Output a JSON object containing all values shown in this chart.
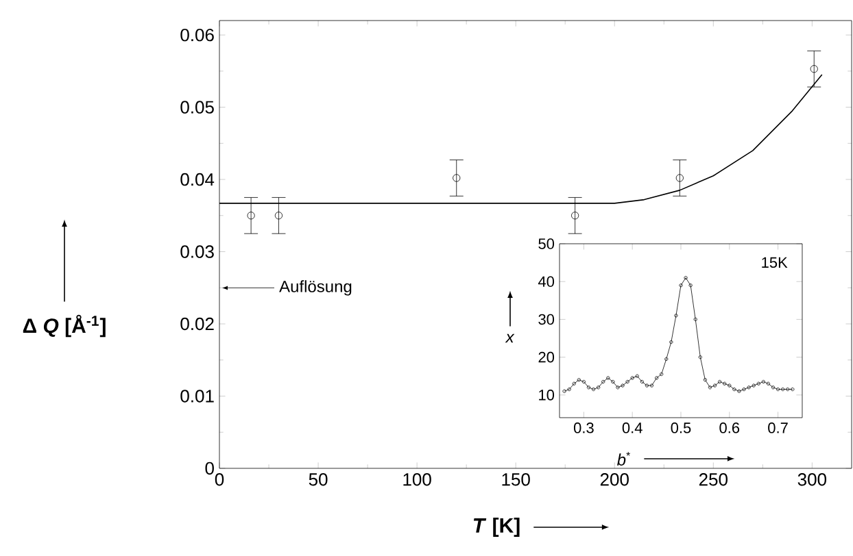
{
  "chart_data": [
    {
      "type": "scatter",
      "xlabel": "*T* [K]",
      "ylabel": "Δ *Q* [Å$^{-1}$]",
      "xlim": [
        0,
        320
      ],
      "ylim": [
        0,
        0.062
      ],
      "xticks": [
        0,
        50,
        100,
        150,
        200,
        250,
        300
      ],
      "yticks": [
        0,
        0.01,
        0.02,
        0.03,
        0.04,
        0.05,
        0.06
      ],
      "marker": "circle",
      "annotations": [
        "Auflösung"
      ],
      "series": [
        {
          "type": "scatter",
          "color": "#000000",
          "x": [
            16,
            30,
            120,
            180,
            233,
            301
          ],
          "values": [
            0.035,
            0.035,
            0.0402,
            0.035,
            0.0402,
            0.0553
          ],
          "errors": [
            0.0025,
            0.0025,
            0.0025,
            0.0025,
            0.0025,
            0.0025
          ]
        },
        {
          "type": "line",
          "marker": "none",
          "color": "#000000",
          "x": [
            0,
            100,
            200,
            215,
            233,
            250,
            270,
            290,
            305
          ],
          "values": [
            0.0367,
            0.0367,
            0.0367,
            0.0372,
            0.0385,
            0.0405,
            0.044,
            0.0495,
            0.0545
          ]
        }
      ]
    },
    {
      "type": "line",
      "marker": "circle",
      "xlabel": "*b*$^{*}$",
      "ylabel": "*x*",
      "xlim": [
        0.25,
        0.75
      ],
      "ylim": [
        4,
        50
      ],
      "xticks": [
        0.3,
        0.4,
        0.5,
        0.6,
        0.7
      ],
      "yticks": [
        10,
        20,
        30,
        40,
        50
      ],
      "annotations": [
        "15K"
      ],
      "series": [
        {
          "color": "#000000",
          "x": [
            0.26,
            0.27,
            0.28,
            0.29,
            0.3,
            0.31,
            0.32,
            0.33,
            0.34,
            0.35,
            0.36,
            0.37,
            0.38,
            0.39,
            0.4,
            0.41,
            0.42,
            0.43,
            0.44,
            0.45,
            0.46,
            0.47,
            0.48,
            0.49,
            0.5,
            0.51,
            0.52,
            0.53,
            0.54,
            0.55,
            0.56,
            0.57,
            0.58,
            0.59,
            0.6,
            0.61,
            0.62,
            0.63,
            0.64,
            0.65,
            0.66,
            0.67,
            0.68,
            0.69,
            0.7,
            0.71,
            0.72,
            0.73
          ],
          "values": [
            11,
            11.5,
            13,
            14,
            13.5,
            12,
            11.5,
            12,
            13.5,
            14.5,
            13.5,
            12,
            12.5,
            13.5,
            14.5,
            15,
            13.5,
            12.5,
            12.5,
            14.5,
            15.5,
            19.5,
            24,
            31,
            39,
            41,
            39,
            30,
            20,
            14,
            12,
            12.5,
            13.5,
            13,
            12.5,
            11.5,
            11,
            11.5,
            12,
            12.5,
            13,
            13.5,
            13,
            12,
            11.5,
            11.5,
            11.5,
            11.5
          ]
        }
      ]
    }
  ]
}
